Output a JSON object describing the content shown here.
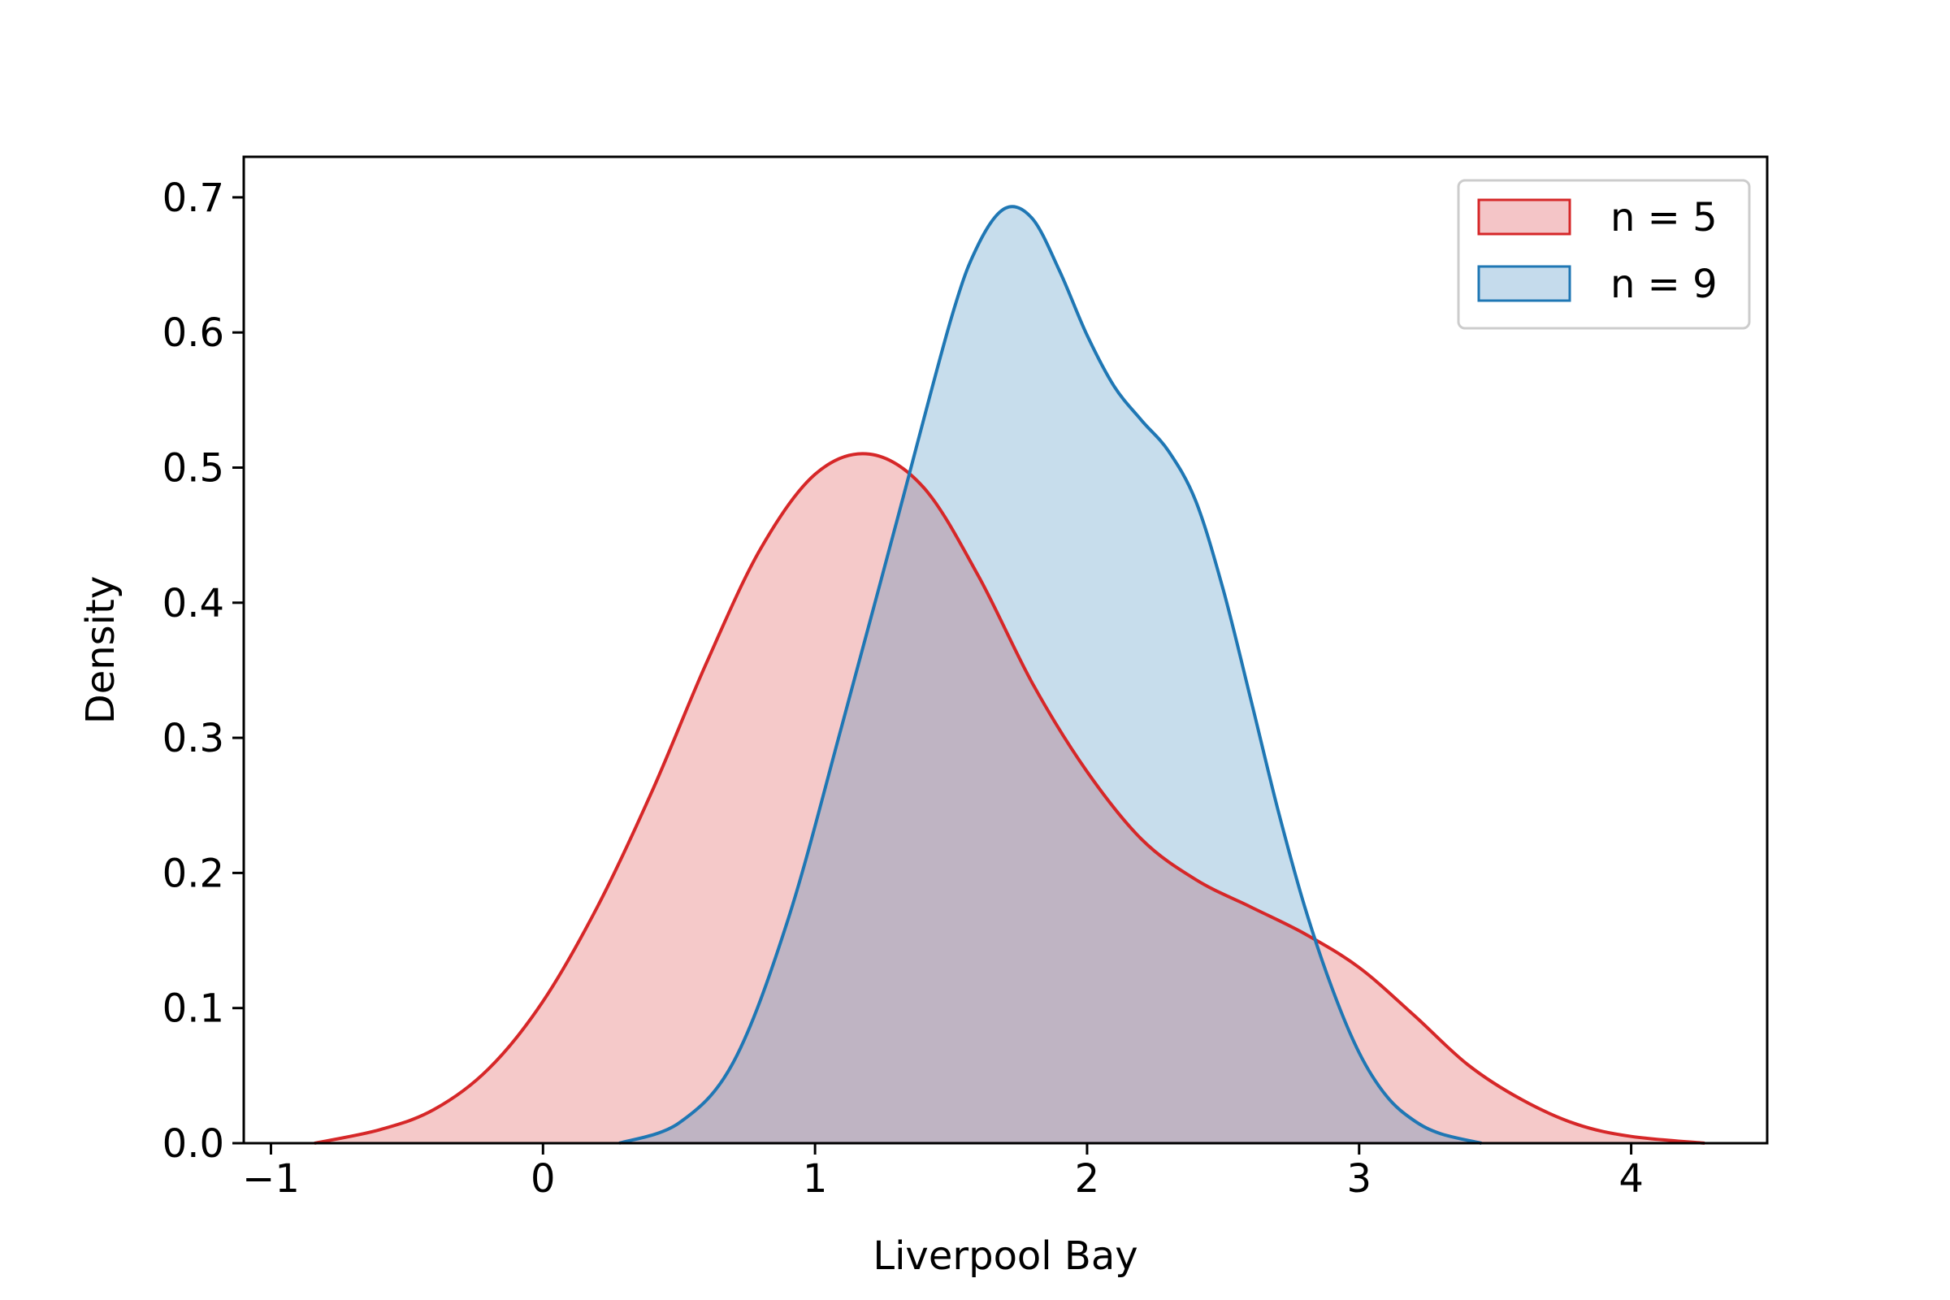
{
  "chart_data": {
    "type": "area",
    "title": "",
    "xlabel": "Liverpool Bay",
    "ylabel": "Density",
    "xlim": [
      -1.1,
      4.5
    ],
    "ylim": [
      0.0,
      0.73
    ],
    "xticks": [
      -1,
      0,
      1,
      2,
      3,
      4
    ],
    "xtick_labels": [
      "−1",
      "0",
      "1",
      "2",
      "3",
      "4"
    ],
    "yticks": [
      0.0,
      0.1,
      0.2,
      0.3,
      0.4,
      0.5,
      0.6,
      0.7
    ],
    "ytick_labels": [
      "0.0",
      "0.1",
      "0.2",
      "0.3",
      "0.4",
      "0.5",
      "0.6",
      "0.7"
    ],
    "grid": false,
    "legend_position": "top-right",
    "series": [
      {
        "name": "n = 5",
        "color": "#d62728",
        "fill_color": "#f4c5c7",
        "x": [
          -0.84,
          -0.6,
          -0.4,
          -0.2,
          0.0,
          0.2,
          0.4,
          0.6,
          0.8,
          1.0,
          1.2,
          1.4,
          1.6,
          1.8,
          2.0,
          2.2,
          2.4,
          2.6,
          2.8,
          3.0,
          3.2,
          3.4,
          3.6,
          3.8,
          4.0,
          4.27
        ],
        "y": [
          0.0,
          0.01,
          0.025,
          0.055,
          0.105,
          0.175,
          0.26,
          0.355,
          0.44,
          0.495,
          0.51,
          0.485,
          0.42,
          0.34,
          0.275,
          0.225,
          0.195,
          0.175,
          0.155,
          0.13,
          0.095,
          0.058,
          0.032,
          0.014,
          0.005,
          0.0
        ]
      },
      {
        "name": "n = 9",
        "color": "#1f77b4",
        "fill_color": "#c5dbec",
        "x": [
          0.28,
          0.5,
          0.7,
          0.9,
          1.1,
          1.3,
          1.5,
          1.6,
          1.7,
          1.8,
          1.9,
          2.0,
          2.1,
          2.2,
          2.3,
          2.4,
          2.5,
          2.6,
          2.7,
          2.8,
          2.9,
          3.0,
          3.1,
          3.2,
          3.3,
          3.45
        ],
        "y": [
          0.0,
          0.015,
          0.06,
          0.165,
          0.31,
          0.46,
          0.61,
          0.665,
          0.692,
          0.684,
          0.645,
          0.598,
          0.56,
          0.535,
          0.512,
          0.475,
          0.41,
          0.33,
          0.248,
          0.175,
          0.115,
          0.067,
          0.035,
          0.017,
          0.007,
          0.0
        ]
      }
    ]
  }
}
